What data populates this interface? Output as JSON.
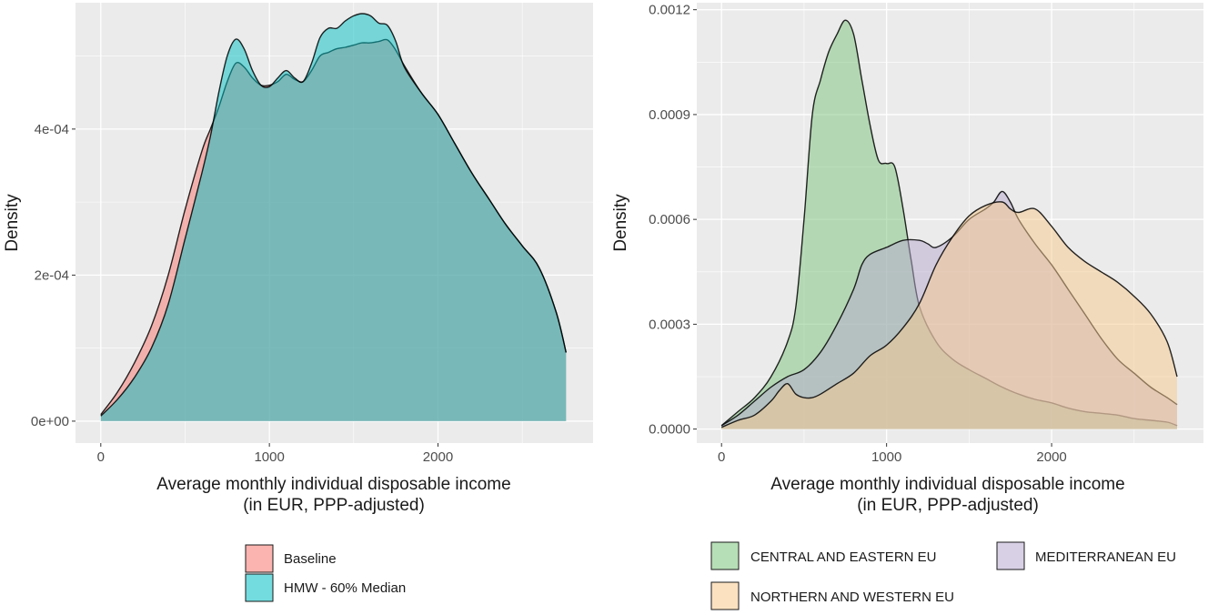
{
  "chart_data": [
    {
      "type": "area",
      "subtype": "density",
      "x_label_line1": "Average monthly individual disposable income",
      "x_label_line2": "(in EUR, PPP-adjusted)",
      "ylabel": "Density",
      "xlim": [
        -150,
        2920
      ],
      "ylim": [
        -3e-05,
        0.000573
      ],
      "x_ticks": [
        0,
        1000,
        2000
      ],
      "x_tick_labels": [
        "0",
        "1000",
        "2000"
      ],
      "y_ticks": [
        0,
        0.0002,
        0.0004
      ],
      "y_tick_labels": [
        "0e+00",
        "2e-04",
        "4e-04"
      ],
      "legend_position": "bottom",
      "series": [
        {
          "name": "Baseline",
          "color": "#F8766D",
          "x": [
            0,
            100,
            200,
            300,
            400,
            500,
            600,
            650,
            700,
            750,
            800,
            850,
            900,
            950,
            1000,
            1050,
            1100,
            1150,
            1200,
            1250,
            1300,
            1350,
            1400,
            1450,
            1500,
            1550,
            1600,
            1650,
            1700,
            1750,
            1800,
            1900,
            2000,
            2100,
            2200,
            2300,
            2400,
            2500,
            2600,
            2700,
            2760
          ],
          "values": [
            9e-06,
            4e-05,
            8e-05,
            0.00013,
            0.0002,
            0.00029,
            0.00037,
            0.0004,
            0.00043,
            0.000465,
            0.00049,
            0.000485,
            0.00047,
            0.00046,
            0.00046,
            0.000465,
            0.000475,
            0.000468,
            0.000465,
            0.00048,
            0.0005,
            0.000505,
            0.00051,
            0.000512,
            0.000515,
            0.000518,
            0.000518,
            0.00052,
            0.000522,
            0.000508,
            0.000487,
            0.00045,
            0.00042,
            0.00038,
            0.00034,
            0.000305,
            0.00027,
            0.00024,
            0.00021,
            0.00015,
            9.4e-05
          ]
        },
        {
          "name": "HMW - 60% Median",
          "color": "#00BFC4",
          "x": [
            0,
            100,
            200,
            300,
            400,
            500,
            600,
            650,
            700,
            750,
            800,
            850,
            900,
            950,
            1000,
            1050,
            1100,
            1150,
            1200,
            1250,
            1300,
            1350,
            1400,
            1450,
            1500,
            1550,
            1600,
            1650,
            1700,
            1750,
            1800,
            1900,
            2000,
            2100,
            2200,
            2300,
            2400,
            2500,
            2600,
            2700,
            2760
          ],
          "values": [
            7e-06,
            3e-05,
            6e-05,
            0.0001,
            0.00016,
            0.00025,
            0.00034,
            0.00039,
            0.00045,
            0.0005,
            0.000523,
            0.00051,
            0.00048,
            0.00046,
            0.000458,
            0.00047,
            0.00048,
            0.00047,
            0.000465,
            0.00049,
            0.000525,
            0.000538,
            0.000538,
            0.000548,
            0.000555,
            0.000558,
            0.000555,
            0.000545,
            0.000542,
            0.00052,
            0.000485,
            0.00045,
            0.00042,
            0.00038,
            0.00034,
            0.000305,
            0.00027,
            0.00024,
            0.00021,
            0.00015,
            9.4e-05
          ]
        }
      ]
    },
    {
      "type": "area",
      "subtype": "density",
      "x_label_line1": "Average monthly individual disposable income",
      "x_label_line2": "(in EUR, PPP-adjusted)",
      "ylabel": "Density",
      "xlim": [
        -150,
        2920
      ],
      "ylim": [
        -4e-05,
        0.00122
      ],
      "x_ticks": [
        0,
        1000,
        2000
      ],
      "x_tick_labels": [
        "0",
        "1000",
        "2000"
      ],
      "y_ticks": [
        0,
        0.0003,
        0.0006,
        0.0009,
        0.0012
      ],
      "y_tick_labels": [
        "0.0000",
        "0.0003",
        "0.0006",
        "0.0009",
        "0.0012"
      ],
      "legend_position": "bottom",
      "series": [
        {
          "name": "CENTRAL AND EASTERN EU",
          "color": "#7CC47C",
          "x": [
            0,
            100,
            200,
            300,
            400,
            450,
            500,
            550,
            600,
            650,
            700,
            750,
            800,
            850,
            900,
            950,
            1000,
            1050,
            1100,
            1150,
            1200,
            1300,
            1400,
            1500,
            1600,
            1700,
            1800,
            1900,
            2000,
            2100,
            2200,
            2300,
            2400,
            2500,
            2600,
            2700,
            2760
          ],
          "values": [
            1e-05,
            5e-05,
            9e-05,
            0.00015,
            0.00025,
            0.00035,
            0.0006,
            0.0009,
            0.001,
            0.00108,
            0.00113,
            0.00117,
            0.00113,
            0.001,
            0.00087,
            0.00077,
            0.00076,
            0.00075,
            0.00063,
            0.00048,
            0.00035,
            0.00025,
            0.0002,
            0.00017,
            0.000145,
            0.00012,
            0.0001,
            8.5e-05,
            7.5e-05,
            6e-05,
            5e-05,
            4.5e-05,
            4e-05,
            3e-05,
            2.5e-05,
            2e-05,
            1e-05
          ]
        },
        {
          "name": "MEDITERRANEAN EU",
          "color": "#B8A9D0",
          "x": [
            0,
            100,
            200,
            300,
            400,
            500,
            600,
            700,
            800,
            850,
            900,
            1000,
            1100,
            1200,
            1250,
            1300,
            1400,
            1500,
            1600,
            1650,
            1700,
            1750,
            1800,
            1900,
            2000,
            2100,
            2200,
            2300,
            2400,
            2500,
            2600,
            2700,
            2760
          ],
          "values": [
            1e-05,
            4e-05,
            8e-05,
            0.00012,
            0.00015,
            0.00017,
            0.00022,
            0.0003,
            0.0004,
            0.00047,
            0.0005,
            0.00052,
            0.00054,
            0.00054,
            0.00053,
            0.00052,
            0.00055,
            0.0006,
            0.00063,
            0.00065,
            0.00068,
            0.00065,
            0.0006,
            0.00053,
            0.00047,
            0.0004,
            0.00033,
            0.00026,
            0.0002,
            0.00016,
            0.00012,
            9e-05,
            7e-05
          ]
        },
        {
          "name": "NORTHERN AND WESTERN EU",
          "color": "#F7C98D",
          "x": [
            0,
            100,
            200,
            300,
            350,
            400,
            450,
            500,
            550,
            600,
            700,
            800,
            900,
            1000,
            1100,
            1200,
            1300,
            1400,
            1500,
            1600,
            1700,
            1750,
            1800,
            1900,
            2000,
            2100,
            2200,
            2300,
            2400,
            2500,
            2600,
            2700,
            2760
          ],
          "values": [
            5e-06,
            2.5e-05,
            4e-05,
            8e-05,
            0.00011,
            0.00013,
            0.0001,
            9e-05,
            9e-05,
            0.0001,
            0.00013,
            0.00016,
            0.00021,
            0.00024,
            0.00029,
            0.00036,
            0.00047,
            0.00055,
            0.00061,
            0.00064,
            0.00065,
            0.00063,
            0.00062,
            0.00063,
            0.00058,
            0.00052,
            0.00048,
            0.00045,
            0.00042,
            0.00038,
            0.00033,
            0.00025,
            0.00015
          ]
        }
      ]
    }
  ]
}
